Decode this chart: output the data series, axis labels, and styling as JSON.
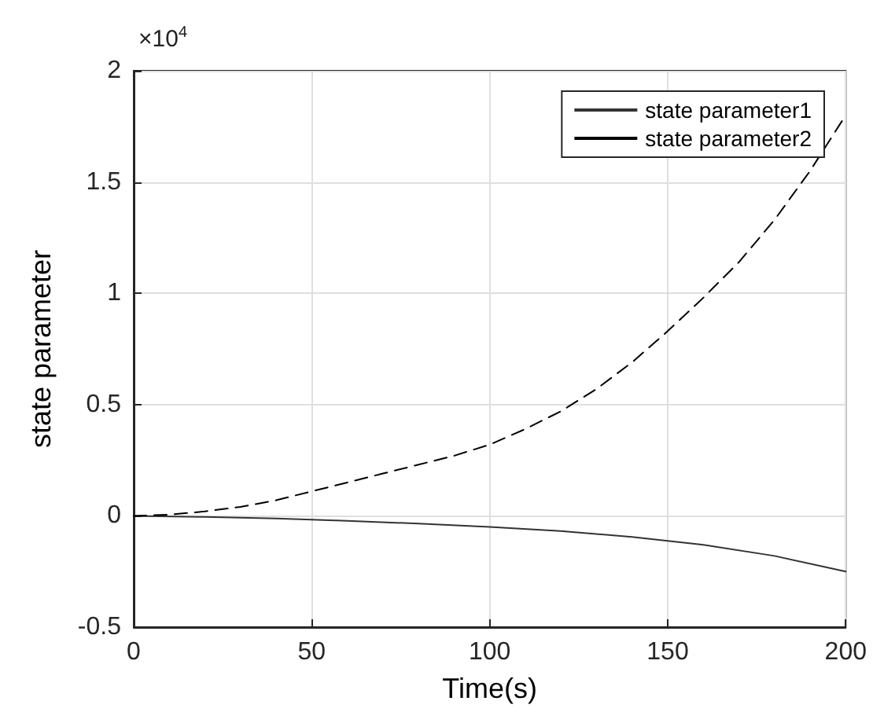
{
  "chart_data": {
    "type": "line",
    "xlabel": "Time(s)",
    "ylabel": "state parameter",
    "annotations": [
      "×10$^{4}$"
    ],
    "xlim": [
      0,
      200
    ],
    "xticks": [
      0,
      50,
      100,
      150,
      200
    ],
    "ylim": [
      -0.5,
      2
    ],
    "yticks": [
      -0.5,
      0,
      0.5,
      1,
      1.5,
      2
    ],
    "grid": true,
    "legend": "top right",
    "marker": "none",
    "series": [
      {
        "name": "state parameter1",
        "color": "#333333",
        "line_style": "solid",
        "x": [
          0,
          20,
          40,
          60,
          80,
          100,
          120,
          140,
          160,
          180,
          200
        ],
        "values": [
          0,
          -0.005,
          -0.012,
          -0.022,
          -0.035,
          -0.05,
          -0.068,
          -0.095,
          -0.13,
          -0.18,
          -0.25
        ]
      },
      {
        "name": "state parameter2",
        "color": "#000000",
        "line_style": "dashed",
        "x": [
          0,
          10,
          20,
          30,
          40,
          50,
          60,
          70,
          80,
          90,
          100,
          110,
          120,
          130,
          140,
          150,
          160,
          170,
          180,
          190,
          200
        ],
        "values": [
          0,
          0.005,
          0.02,
          0.04,
          0.07,
          0.11,
          0.15,
          0.19,
          0.23,
          0.27,
          0.32,
          0.39,
          0.47,
          0.57,
          0.69,
          0.83,
          0.98,
          1.14,
          1.33,
          1.55,
          1.8
        ]
      }
    ]
  }
}
